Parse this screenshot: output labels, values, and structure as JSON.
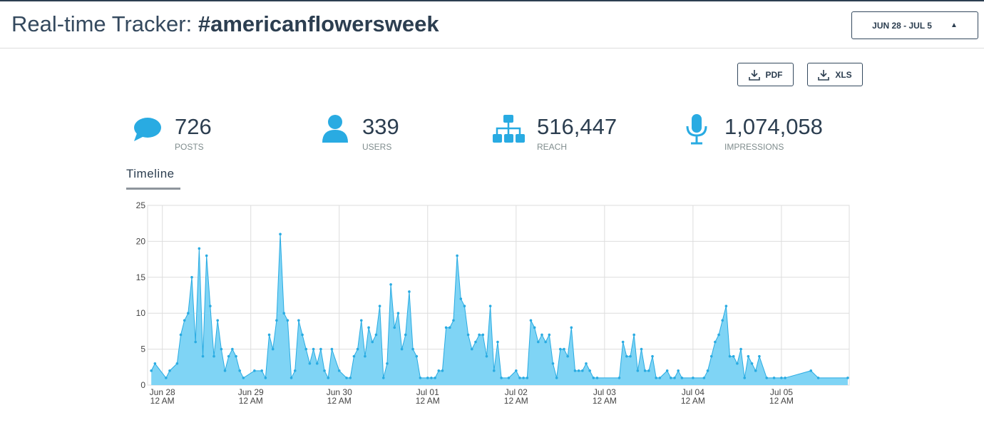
{
  "header": {
    "title": "Real-time Tracker:",
    "hashtag": "#americanflowersweek",
    "date_range": "JUN 28 - JUL 5"
  },
  "exports": [
    "PDF",
    "XLS"
  ],
  "stats": [
    {
      "value": "726",
      "label": "POSTS"
    },
    {
      "value": "339",
      "label": "USERS"
    },
    {
      "value": "516,447",
      "label": "REACH"
    },
    {
      "value": "1,074,058",
      "label": "IMPRESSIONS"
    }
  ],
  "tab": "Timeline",
  "chart_data": {
    "type": "area",
    "color": "#29abe2",
    "fill": "#7fd4f5",
    "grid": true,
    "x": [
      -3,
      -2,
      1,
      2,
      4,
      5,
      6,
      7,
      8,
      9,
      10,
      11,
      12,
      13,
      14,
      15,
      16,
      17,
      18,
      19,
      20,
      21,
      22,
      25,
      27,
      28,
      29,
      30,
      31,
      32,
      33,
      34,
      35,
      36,
      37,
      38,
      39,
      40,
      41,
      42,
      43,
      44,
      45,
      46,
      48,
      50,
      51,
      52,
      53,
      54,
      55,
      56,
      57,
      58,
      59,
      60,
      61,
      62,
      63,
      64,
      65,
      66,
      67,
      68,
      69,
      70,
      72,
      73,
      74,
      75,
      76,
      77,
      78,
      79,
      80,
      81,
      82,
      83,
      84,
      85,
      86,
      87,
      88,
      89,
      90,
      91,
      92,
      94,
      96,
      97,
      98,
      99,
      100,
      101,
      102,
      103,
      104,
      105,
      106,
      107,
      108,
      109,
      110,
      111,
      112,
      113,
      114,
      115,
      116,
      117,
      118,
      124,
      125,
      126,
      127,
      128,
      129,
      130,
      131,
      132,
      133,
      134,
      135,
      137,
      138,
      139,
      140,
      141,
      144,
      147,
      148,
      149,
      150,
      151,
      152,
      153,
      154,
      155,
      156,
      157,
      158,
      159,
      160,
      161,
      162,
      164,
      166,
      168,
      169,
      176,
      178,
      186
    ],
    "values": [
      2,
      3,
      1,
      2,
      3,
      7,
      9,
      10,
      15,
      6,
      19,
      4,
      18,
      11,
      4,
      9,
      5,
      2,
      4,
      5,
      4,
      2,
      1,
      2,
      2,
      1,
      7,
      5,
      9,
      21,
      10,
      9,
      1,
      2,
      9,
      7,
      5,
      3,
      5,
      3,
      5,
      2,
      1,
      5,
      2,
      1,
      1,
      4,
      5,
      9,
      4,
      8,
      6,
      7,
      11,
      1,
      3,
      14,
      8,
      10,
      5,
      7,
      13,
      5,
      4,
      1,
      1,
      1,
      1,
      2,
      2,
      8,
      8,
      9,
      18,
      12,
      11,
      7,
      5,
      6,
      7,
      7,
      4,
      11,
      2,
      6,
      1,
      1,
      2,
      1,
      1,
      1,
      9,
      8,
      6,
      7,
      6,
      7,
      3,
      1,
      5,
      5,
      4,
      8,
      2,
      2,
      2,
      3,
      2,
      1,
      1,
      1,
      6,
      4,
      4,
      7,
      2,
      5,
      2,
      2,
      4,
      1,
      1,
      2,
      1,
      1,
      2,
      1,
      1,
      1,
      2,
      4,
      6,
      7,
      9,
      11,
      4,
      4,
      3,
      5,
      1,
      4,
      3,
      2,
      4,
      1,
      1,
      1,
      1,
      2,
      1,
      1
    ],
    "xlim": [
      -4,
      186.4
    ],
    "ylim": [
      0,
      25
    ],
    "yticks": [
      0,
      5,
      10,
      15,
      20,
      25
    ],
    "xticks": [
      {
        "value": 0,
        "label": "Jun 28",
        "label2": "12 AM"
      },
      {
        "value": 24,
        "label": "Jun 29",
        "label2": "12 AM"
      },
      {
        "value": 48,
        "label": "Jun 30",
        "label2": "12 AM"
      },
      {
        "value": 72,
        "label": "Jul 01",
        "label2": "12 AM"
      },
      {
        "value": 96,
        "label": "Jul 02",
        "label2": "12 AM"
      },
      {
        "value": 120,
        "label": "Jul 03",
        "label2": "12 AM"
      },
      {
        "value": 144,
        "label": "Jul 04",
        "label2": "12 AM"
      },
      {
        "value": 168,
        "label": "Jul 05",
        "label2": "12 AM"
      }
    ]
  }
}
